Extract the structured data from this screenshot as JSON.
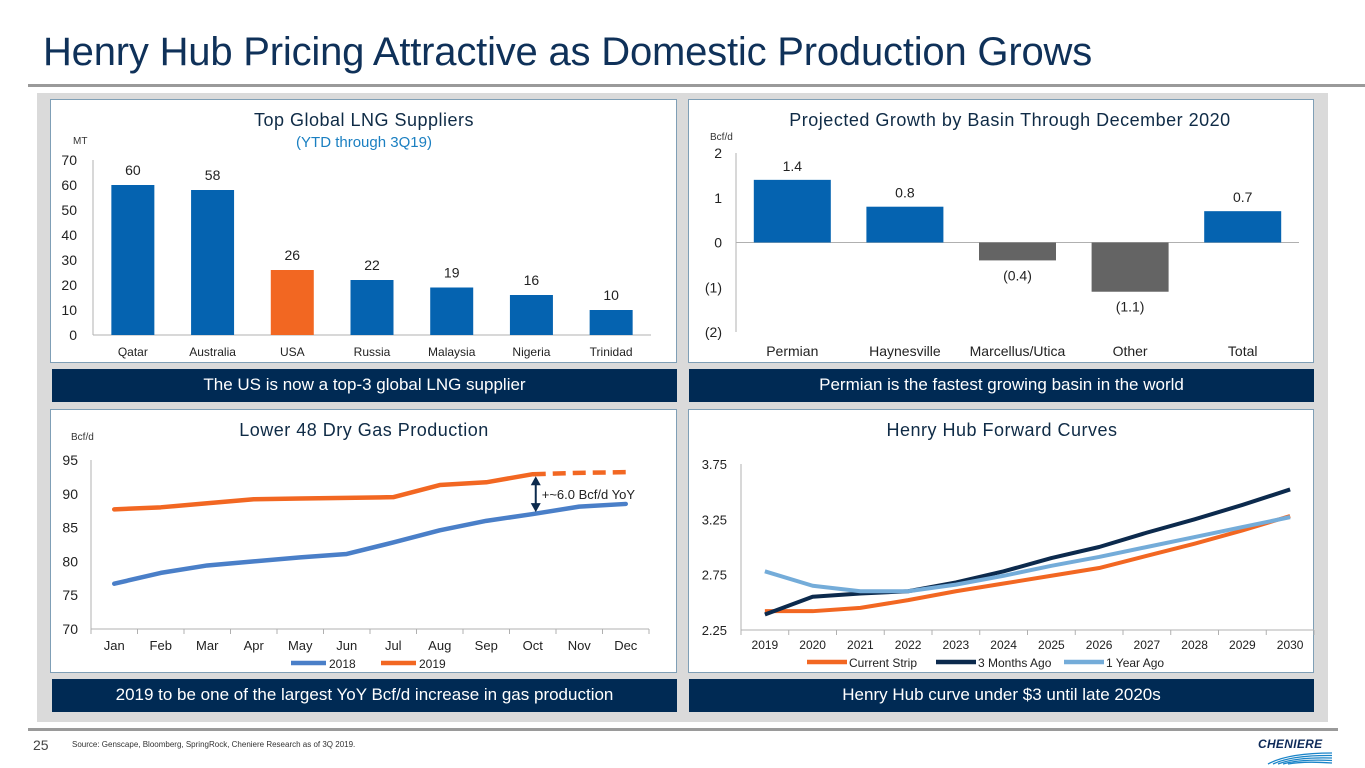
{
  "slide": {
    "title": "Henry Hub Pricing Attractive as Domestic Production Grows",
    "page_number": "25",
    "source": "Source:   Genscape, Bloomberg, SpringRock, Cheniere Research as of 3Q 2019.",
    "logo_text": "CHENIERE"
  },
  "banners": {
    "top_left": "The US is now a top-3 global LNG supplier",
    "top_right": "Permian is the fastest growing basin in the world",
    "bottom_left": "2019 to be one of the largest YoY Bcf/d increase in gas production",
    "bottom_right": "Henry Hub curve under $3 until late 2020s"
  },
  "colors": {
    "blue": "#0563b0",
    "orange": "#f26722",
    "gray": "#646464",
    "navy": "#0c2a4d",
    "light_blue": "#74acd9",
    "line_blue": "#4a7fc8",
    "subtitle_blue": "#1a7fc1",
    "banner": "#002a54"
  },
  "chart_data": [
    {
      "id": "lng-suppliers",
      "type": "bar",
      "title": "Top Global LNG Suppliers",
      "subtitle": "(YTD through 3Q19)",
      "ylabel": "MT",
      "xlabel": "",
      "ylim": [
        0,
        70
      ],
      "yticks": [
        0,
        10,
        20,
        30,
        40,
        50,
        60,
        70
      ],
      "ytick_labels": [
        "0",
        "10",
        "20",
        "30",
        "40",
        "50",
        "60",
        "70"
      ],
      "categories": [
        "Qatar",
        "Australia",
        "USA",
        "Russia",
        "Malaysia",
        "Nigeria",
        "Trinidad"
      ],
      "values": [
        60,
        58,
        26,
        22,
        19,
        16,
        10
      ],
      "data_labels": [
        "60",
        "58",
        "26",
        "22",
        "19",
        "16",
        "10"
      ],
      "highlight": "USA",
      "grid": false
    },
    {
      "id": "basin-growth",
      "type": "bar",
      "title": "Projected Growth by Basin Through December 2020",
      "ylabel": "Bcf/d",
      "xlabel": "",
      "ylim": [
        -2,
        2
      ],
      "yticks": [
        -2,
        -1,
        0,
        1,
        2
      ],
      "ytick_labels": [
        "(2)",
        "(1)",
        "0",
        "1",
        "2"
      ],
      "categories": [
        "Permian",
        "Haynesville",
        "Marcellus/Utica",
        "Other",
        "Total"
      ],
      "values": [
        1.4,
        0.8,
        -0.4,
        -1.1,
        0.7
      ],
      "data_labels": [
        "1.4",
        "0.8",
        "(0.4)",
        "(1.1)",
        "0.7"
      ],
      "grid": false
    },
    {
      "id": "lower48",
      "type": "line",
      "title": "Lower 48 Dry Gas Production",
      "ylabel": "Bcf/d",
      "xlabel": "",
      "ylim": [
        70,
        95
      ],
      "yticks": [
        70,
        75,
        80,
        85,
        90,
        95
      ],
      "ytick_labels": [
        "70",
        "75",
        "80",
        "85",
        "90",
        "95"
      ],
      "categories": [
        "Jan",
        "Feb",
        "Mar",
        "Apr",
        "May",
        "Jun",
        "Jul",
        "Aug",
        "Sep",
        "Oct",
        "Nov",
        "Dec"
      ],
      "series": [
        {
          "name": "2018",
          "values": [
            76.7,
            78.3,
            79.4,
            80.0,
            80.6,
            81.1,
            82.8,
            84.6,
            86.0,
            87.0,
            88.1,
            88.5
          ],
          "dashed_from_index": null
        },
        {
          "name": "2019",
          "values": [
            87.7,
            88.0,
            88.6,
            89.2,
            89.3,
            89.4,
            89.5,
            91.3,
            91.7,
            92.9,
            93.1,
            93.2
          ],
          "dashed_from_index": 9
        }
      ],
      "annotation": {
        "text": "+~6.0 Bcf/d YoY",
        "category": "Oct"
      },
      "legend": "bottom",
      "grid": false
    },
    {
      "id": "henry-hub",
      "type": "line",
      "title": "Henry Hub Forward Curves",
      "ylabel": "",
      "xlabel": "",
      "ylim": [
        2.25,
        3.75
      ],
      "yticks": [
        2.25,
        2.75,
        3.25,
        3.75
      ],
      "ytick_labels": [
        "2.25",
        "2.75",
        "3.25",
        "3.75"
      ],
      "categories": [
        "2019",
        "2020",
        "2021",
        "2022",
        "2023",
        "2024",
        "2025",
        "2026",
        "2027",
        "2028",
        "2029",
        "2030"
      ],
      "series": [
        {
          "name": "Current Strip",
          "values": [
            2.42,
            2.42,
            2.45,
            2.52,
            2.6,
            2.67,
            2.74,
            2.81,
            2.92,
            3.03,
            3.15,
            3.28
          ]
        },
        {
          "name": "3 Months Ago",
          "values": [
            2.39,
            2.55,
            2.58,
            2.6,
            2.68,
            2.78,
            2.9,
            3.0,
            3.13,
            3.25,
            3.38,
            3.52
          ]
        },
        {
          "name": "1 Year Ago",
          "values": [
            2.78,
            2.65,
            2.6,
            2.6,
            2.66,
            2.74,
            2.83,
            2.91,
            3.0,
            3.09,
            3.18,
            3.27
          ]
        }
      ],
      "legend": "bottom",
      "grid": false
    }
  ]
}
